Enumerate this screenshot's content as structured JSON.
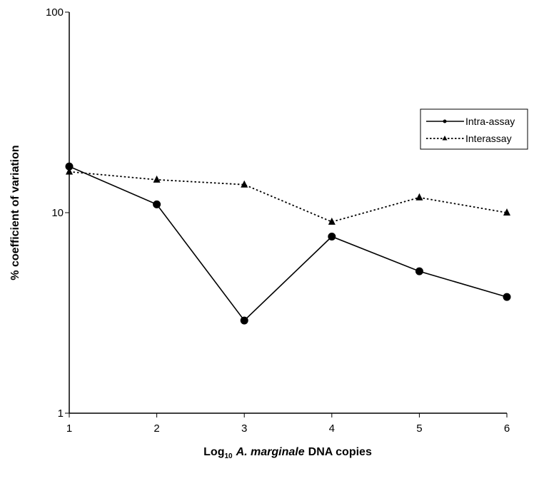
{
  "chart_data": {
    "type": "line",
    "xlabel": {
      "prefix": "Log",
      "subscript": "10",
      "italic": "A. marginale",
      "suffix": "DNA copies"
    },
    "ylabel": "% coefficient of variation",
    "x_ticks": [
      "1",
      "2",
      "3",
      "4",
      "5",
      "6"
    ],
    "y_ticks": [
      {
        "value": 1,
        "label": "1"
      },
      {
        "value": 10,
        "label": "10"
      },
      {
        "value": 100,
        "label": "100"
      }
    ],
    "xlim": [
      1,
      6
    ],
    "ylim": [
      1,
      100
    ],
    "y_scale": "log",
    "grid": false,
    "legend": "right",
    "series": [
      {
        "name": "Intra-assay",
        "line_style": "solid",
        "marker": "circle",
        "color": "#000000",
        "x": [
          1,
          2,
          3,
          4,
          5,
          6
        ],
        "values": [
          17,
          11,
          2.9,
          7.6,
          5.1,
          3.8
        ]
      },
      {
        "name": "Interassay",
        "line_style": "dotted",
        "marker": "triangle",
        "color": "#000000",
        "x": [
          1,
          2,
          3,
          4,
          5,
          6
        ],
        "values": [
          16,
          14.6,
          13.8,
          9,
          11.9,
          10
        ]
      }
    ]
  }
}
